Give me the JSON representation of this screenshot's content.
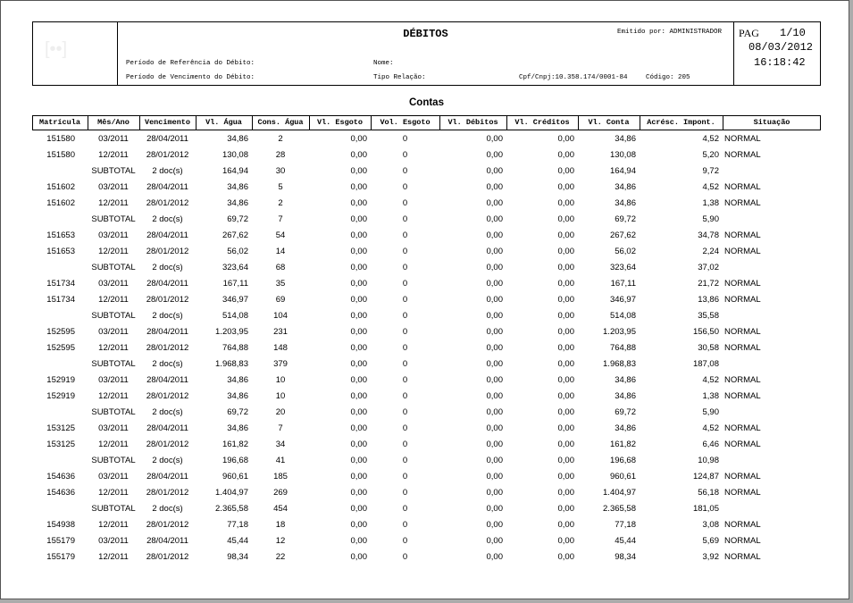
{
  "header": {
    "title": "DÉBITOS",
    "issued_by": "Emitido por: ADMINISTRADOR",
    "page_label": "PAG",
    "page": "1/10",
    "date": "08/03/2012",
    "time": "16:18:42",
    "ref_period": "Período de Referência do Débito:",
    "due_period": "Período de Vencimento do Débito:",
    "name": "Nome:",
    "relation": "Tipo Relação:",
    "cpf": "Cpf/Cnpj:10.358.174/0001-84",
    "code": "Código: 205"
  },
  "section_title": "Contas",
  "table": {
    "columns": [
      "Matrícula",
      "Mês/Ano",
      "Vencimento",
      "Vl. Água",
      "Cons. Água",
      "Vl. Esgoto",
      "Vol. Esgoto",
      "Vl. Débitos",
      "Vl. Créditos",
      "Vl. Conta",
      "Acrésc. Impont.",
      "Situação"
    ],
    "rows": [
      [
        "151580",
        "03/2011",
        "28/04/2011",
        "34,86",
        "2",
        "0,00",
        "0",
        "0,00",
        "0,00",
        "34,86",
        "4,52",
        "NORMAL"
      ],
      [
        "151580",
        "12/2011",
        "28/01/2012",
        "130,08",
        "28",
        "0,00",
        "0",
        "0,00",
        "0,00",
        "130,08",
        "5,20",
        "NORMAL"
      ],
      [
        null,
        "SUBTOTAL",
        "2 doc(s)",
        "164,94",
        "30",
        "0,00",
        "0",
        "0,00",
        "0,00",
        "164,94",
        "9,72",
        null
      ],
      [
        "151602",
        "03/2011",
        "28/04/2011",
        "34,86",
        "5",
        "0,00",
        "0",
        "0,00",
        "0,00",
        "34,86",
        "4,52",
        "NORMAL"
      ],
      [
        "151602",
        "12/2011",
        "28/01/2012",
        "34,86",
        "2",
        "0,00",
        "0",
        "0,00",
        "0,00",
        "34,86",
        "1,38",
        "NORMAL"
      ],
      [
        null,
        "SUBTOTAL",
        "2 doc(s)",
        "69,72",
        "7",
        "0,00",
        "0",
        "0,00",
        "0,00",
        "69,72",
        "5,90",
        null
      ],
      [
        "151653",
        "03/2011",
        "28/04/2011",
        "267,62",
        "54",
        "0,00",
        "0",
        "0,00",
        "0,00",
        "267,62",
        "34,78",
        "NORMAL"
      ],
      [
        "151653",
        "12/2011",
        "28/01/2012",
        "56,02",
        "14",
        "0,00",
        "0",
        "0,00",
        "0,00",
        "56,02",
        "2,24",
        "NORMAL"
      ],
      [
        null,
        "SUBTOTAL",
        "2 doc(s)",
        "323,64",
        "68",
        "0,00",
        "0",
        "0,00",
        "0,00",
        "323,64",
        "37,02",
        null
      ],
      [
        "151734",
        "03/2011",
        "28/04/2011",
        "167,11",
        "35",
        "0,00",
        "0",
        "0,00",
        "0,00",
        "167,11",
        "21,72",
        "NORMAL"
      ],
      [
        "151734",
        "12/2011",
        "28/01/2012",
        "346,97",
        "69",
        "0,00",
        "0",
        "0,00",
        "0,00",
        "346,97",
        "13,86",
        "NORMAL"
      ],
      [
        null,
        "SUBTOTAL",
        "2 doc(s)",
        "514,08",
        "104",
        "0,00",
        "0",
        "0,00",
        "0,00",
        "514,08",
        "35,58",
        null
      ],
      [
        "152595",
        "03/2011",
        "28/04/2011",
        "1.203,95",
        "231",
        "0,00",
        "0",
        "0,00",
        "0,00",
        "1.203,95",
        "156,50",
        "NORMAL"
      ],
      [
        "152595",
        "12/2011",
        "28/01/2012",
        "764,88",
        "148",
        "0,00",
        "0",
        "0,00",
        "0,00",
        "764,88",
        "30,58",
        "NORMAL"
      ],
      [
        null,
        "SUBTOTAL",
        "2 doc(s)",
        "1.968,83",
        "379",
        "0,00",
        "0",
        "0,00",
        "0,00",
        "1.968,83",
        "187,08",
        null
      ],
      [
        "152919",
        "03/2011",
        "28/04/2011",
        "34,86",
        "10",
        "0,00",
        "0",
        "0,00",
        "0,00",
        "34,86",
        "4,52",
        "NORMAL"
      ],
      [
        "152919",
        "12/2011",
        "28/01/2012",
        "34,86",
        "10",
        "0,00",
        "0",
        "0,00",
        "0,00",
        "34,86",
        "1,38",
        "NORMAL"
      ],
      [
        null,
        "SUBTOTAL",
        "2 doc(s)",
        "69,72",
        "20",
        "0,00",
        "0",
        "0,00",
        "0,00",
        "69,72",
        "5,90",
        null
      ],
      [
        "153125",
        "03/2011",
        "28/04/2011",
        "34,86",
        "7",
        "0,00",
        "0",
        "0,00",
        "0,00",
        "34,86",
        "4,52",
        "NORMAL"
      ],
      [
        "153125",
        "12/2011",
        "28/01/2012",
        "161,82",
        "34",
        "0,00",
        "0",
        "0,00",
        "0,00",
        "161,82",
        "6,46",
        "NORMAL"
      ],
      [
        null,
        "SUBTOTAL",
        "2 doc(s)",
        "196,68",
        "41",
        "0,00",
        "0",
        "0,00",
        "0,00",
        "196,68",
        "10,98",
        null
      ],
      [
        "154636",
        "03/2011",
        "28/04/2011",
        "960,61",
        "185",
        "0,00",
        "0",
        "0,00",
        "0,00",
        "960,61",
        "124,87",
        "NORMAL"
      ],
      [
        "154636",
        "12/2011",
        "28/01/2012",
        "1.404,97",
        "269",
        "0,00",
        "0",
        "0,00",
        "0,00",
        "1.404,97",
        "56,18",
        "NORMAL"
      ],
      [
        null,
        "SUBTOTAL",
        "2 doc(s)",
        "2.365,58",
        "454",
        "0,00",
        "0",
        "0,00",
        "0,00",
        "2.365,58",
        "181,05",
        null
      ],
      [
        "154938",
        "12/2011",
        "28/01/2012",
        "77,18",
        "18",
        "0,00",
        "0",
        "0,00",
        "0,00",
        "77,18",
        "3,08",
        "NORMAL"
      ],
      [
        "155179",
        "03/2011",
        "28/04/2011",
        "45,44",
        "12",
        "0,00",
        "0",
        "0,00",
        "0,00",
        "45,44",
        "5,69",
        "NORMAL"
      ],
      [
        "155179",
        "12/2011",
        "28/01/2012",
        "98,34",
        "22",
        "0,00",
        "0",
        "0,00",
        "0,00",
        "98,34",
        "3,92",
        "NORMAL"
      ]
    ]
  }
}
